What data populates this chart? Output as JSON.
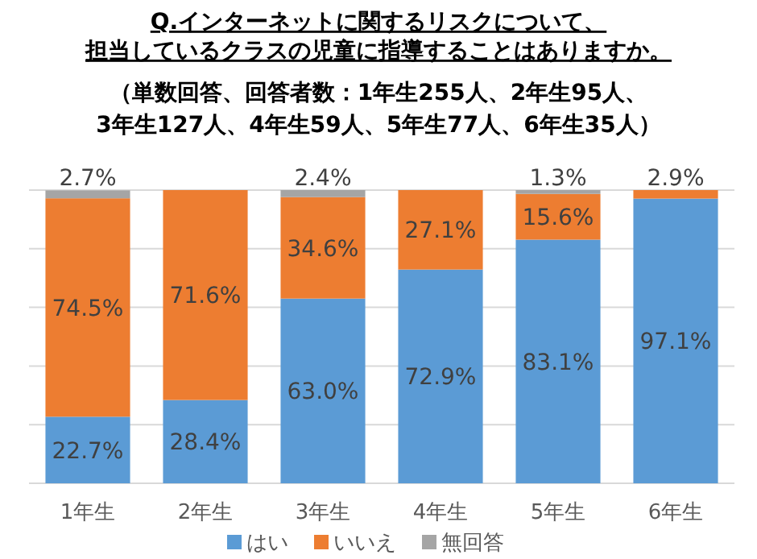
{
  "chart_data": {
    "type": "bar",
    "stacked": true,
    "title": "Q.インターネットに関するリスクについて、担当しているクラスの児童に指導することはありますか。",
    "subtitle": "（単数回答、回答者数：1年生255人、2年生95人、3年生127人、4年生59人、5年生77人、6年生35人）",
    "categories": [
      "1年生",
      "2年生",
      "3年生",
      "4年生",
      "5年生",
      "6年生"
    ],
    "ylim": [
      0,
      100
    ],
    "yticks": [
      {
        "value": 0,
        "label": null
      },
      {
        "value": 20,
        "label": null
      },
      {
        "value": 40,
        "label": null
      },
      {
        "value": 60,
        "label": null
      },
      {
        "value": 80,
        "label": null
      },
      {
        "value": 100,
        "label": null
      }
    ],
    "grid": "y",
    "tick_labels": "x",
    "legend": "bottom",
    "series": [
      {
        "name": "はい",
        "color": "#5b9bd5",
        "values": [
          22.7,
          28.4,
          63.0,
          72.9,
          83.1,
          97.1
        ],
        "value_labels": [
          "22.7%",
          "28.4%",
          "63.0%",
          "72.9%",
          "83.1%",
          "97.1%"
        ]
      },
      {
        "name": "いいえ",
        "color": "#ed7d31",
        "values": [
          74.5,
          71.6,
          34.6,
          27.1,
          15.6,
          2.9
        ],
        "value_labels": [
          "74.5%",
          "71.6%",
          "34.6%",
          "27.1%",
          "15.6%",
          "2.9%"
        ]
      },
      {
        "name": "無回答",
        "color": "#a5a5a5",
        "values": [
          2.7,
          0,
          2.4,
          0,
          1.3,
          0
        ],
        "value_labels": [
          "2.7%",
          null,
          "2.4%",
          null,
          "1.3%",
          null
        ]
      }
    ]
  }
}
